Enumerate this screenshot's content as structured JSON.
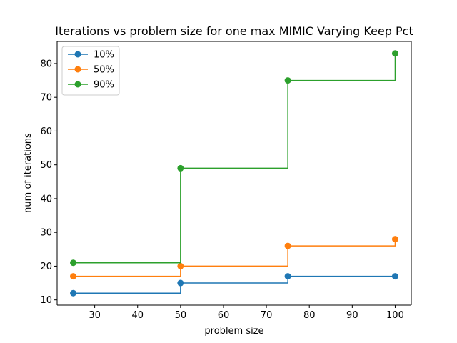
{
  "chart_data": {
    "type": "line",
    "step": "post",
    "title": "Iterations vs problem size for one max MIMIC Varying Keep Pct",
    "xlabel": "problem size",
    "ylabel": "num of iterations",
    "x": [
      25,
      50,
      75,
      100
    ],
    "xlim": [
      21.25,
      103.75
    ],
    "ylim": [
      8.45,
      86.55
    ],
    "xticks": [
      30,
      40,
      50,
      60,
      70,
      80,
      90,
      100
    ],
    "yticks": [
      10,
      20,
      30,
      40,
      50,
      60,
      70,
      80
    ],
    "grid": false,
    "legend_position": "top-left",
    "series": [
      {
        "name": "10%",
        "color": "#1f77b4",
        "values": [
          12,
          15,
          17,
          17
        ]
      },
      {
        "name": "50%",
        "color": "#ff7f0e",
        "values": [
          17,
          20,
          26,
          28
        ]
      },
      {
        "name": "90%",
        "color": "#2ca02c",
        "values": [
          21,
          49,
          75,
          83
        ]
      }
    ]
  }
}
